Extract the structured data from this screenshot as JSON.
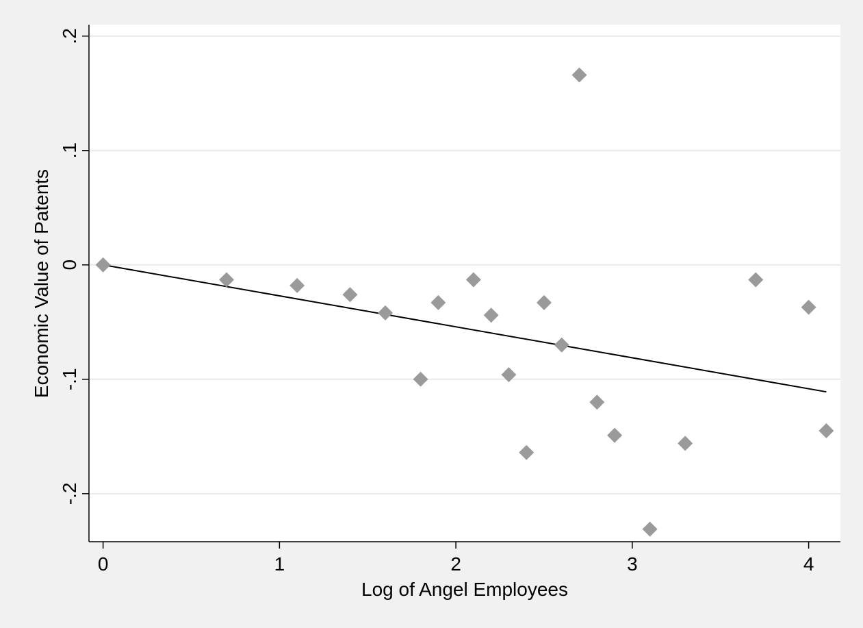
{
  "chart_data": {
    "type": "scatter",
    "title": "",
    "xlabel": "Log of Angel Employees",
    "ylabel": "Economic Value of Patents",
    "xlim": [
      -0.08,
      4.18
    ],
    "ylim": [
      -0.242,
      0.21
    ],
    "x_ticks": [
      0,
      1,
      2,
      3,
      4
    ],
    "x_tick_labels": [
      "0",
      "1",
      "2",
      "3",
      "4"
    ],
    "y_ticks": [
      0.2,
      0.1,
      0,
      -0.1,
      -0.2
    ],
    "y_tick_labels": [
      ".2",
      ".1",
      "0",
      "-.1",
      "-.2"
    ],
    "grid": "horizontal",
    "series": [
      {
        "marker": "diamond",
        "color": "#9a9a9a",
        "points": [
          {
            "x": 0.0,
            "y": 0.0
          },
          {
            "x": 0.7,
            "y": -0.013
          },
          {
            "x": 1.1,
            "y": -0.018
          },
          {
            "x": 1.4,
            "y": -0.026
          },
          {
            "x": 1.6,
            "y": -0.042
          },
          {
            "x": 1.8,
            "y": -0.1
          },
          {
            "x": 1.9,
            "y": -0.033
          },
          {
            "x": 2.1,
            "y": -0.013
          },
          {
            "x": 2.2,
            "y": -0.044
          },
          {
            "x": 2.3,
            "y": -0.096
          },
          {
            "x": 2.4,
            "y": -0.164
          },
          {
            "x": 2.5,
            "y": -0.033
          },
          {
            "x": 2.6,
            "y": -0.07
          },
          {
            "x": 2.7,
            "y": 0.166
          },
          {
            "x": 2.8,
            "y": -0.12
          },
          {
            "x": 2.9,
            "y": -0.149
          },
          {
            "x": 3.1,
            "y": -0.231
          },
          {
            "x": 3.3,
            "y": -0.156
          },
          {
            "x": 3.7,
            "y": -0.013
          },
          {
            "x": 4.0,
            "y": -0.037
          },
          {
            "x": 4.1,
            "y": -0.145
          }
        ]
      }
    ],
    "fit_line": {
      "type": "linear",
      "color": "#000000",
      "x": [
        0.0,
        4.1
      ],
      "y": [
        0.0,
        -0.111
      ]
    }
  },
  "colors": {
    "page_background": "#f1f1f1",
    "plot_background": "#ffffff",
    "gridline": "#e9e9e9",
    "axis": "#000000"
  }
}
